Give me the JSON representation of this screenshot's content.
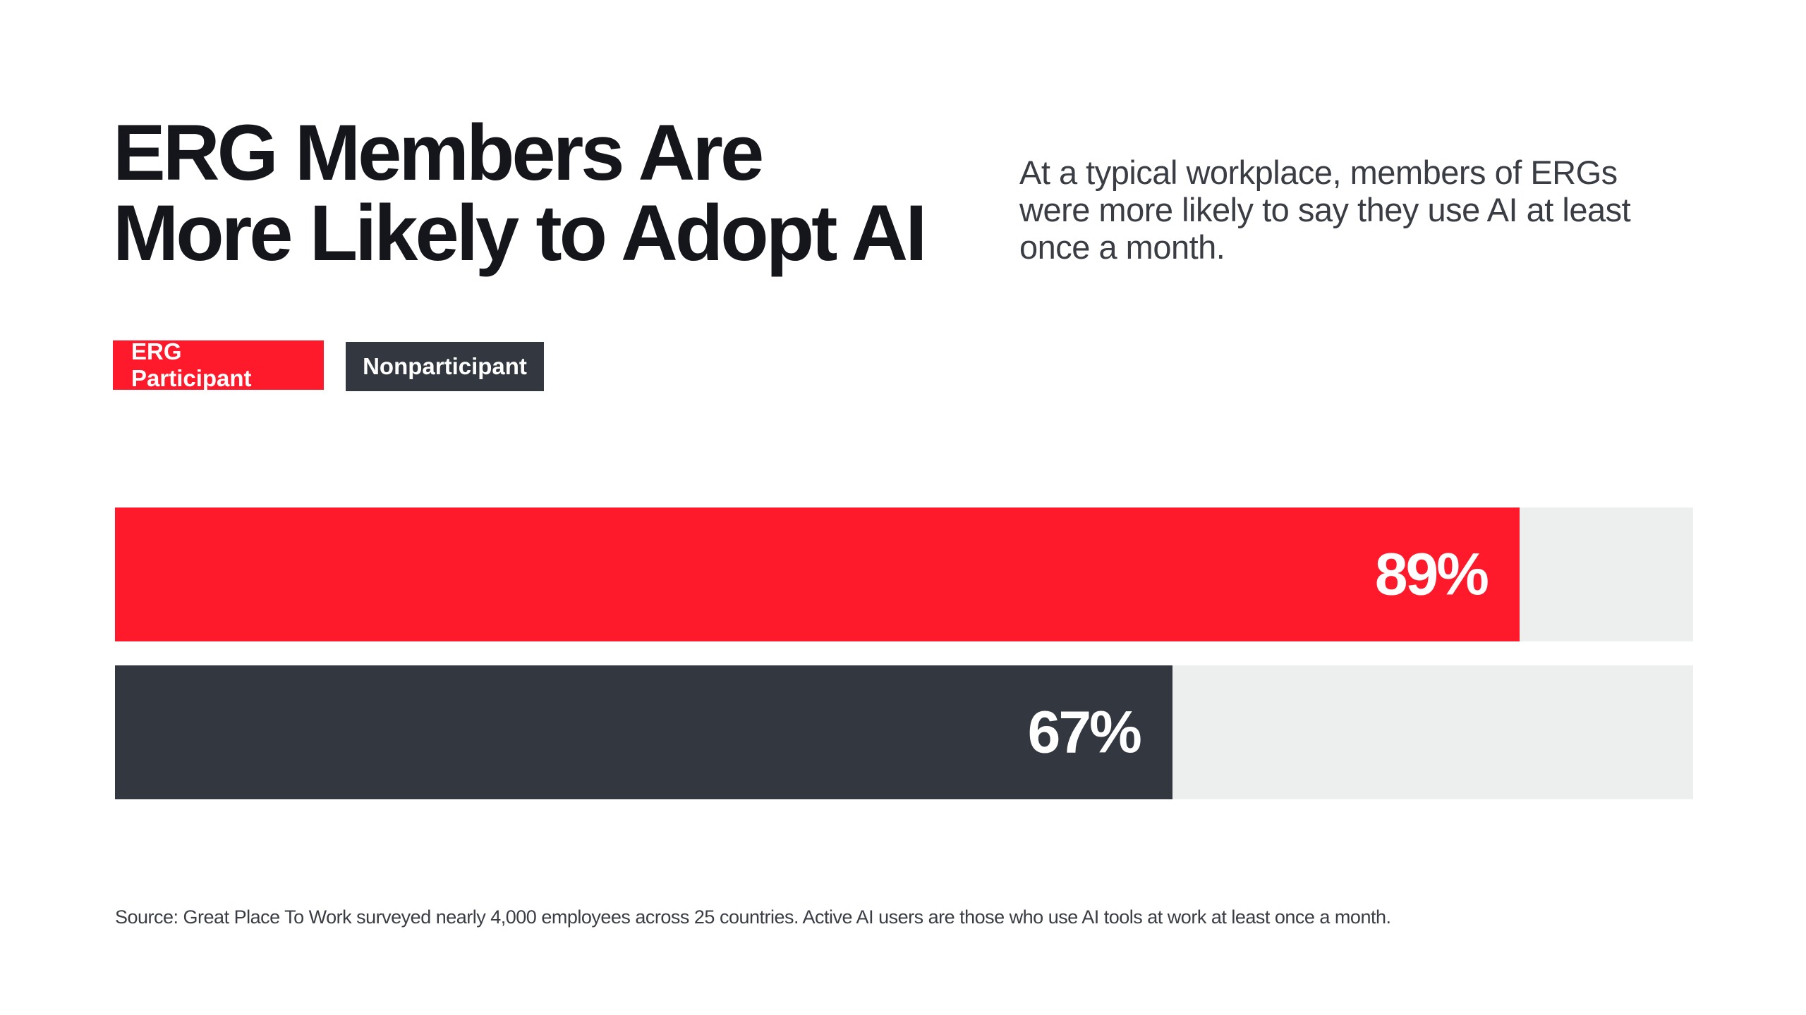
{
  "title_lines": [
    "ERG Members Are",
    "More Likely to Adopt AI"
  ],
  "subtitle": "At a typical workplace, members of ERGs were more likely to say they use AI at least once a month.",
  "source": "Source: Great Place To Work surveyed nearly 4,000 employees across 25 countries. Active AI users are those who use AI tools at work at least once a month.",
  "chart_data": {
    "type": "bar",
    "orientation": "horizontal",
    "xlim": [
      0,
      100
    ],
    "grid": false,
    "legend_placement": "top-left",
    "track_color": "#ECEFEE",
    "series": [
      {
        "name": "ERG Participant",
        "value": 89,
        "label": "89%",
        "color": "#FF1A2B"
      },
      {
        "name": "Nonparticipant",
        "value": 67,
        "label": "67%",
        "color": "#333840"
      }
    ]
  }
}
